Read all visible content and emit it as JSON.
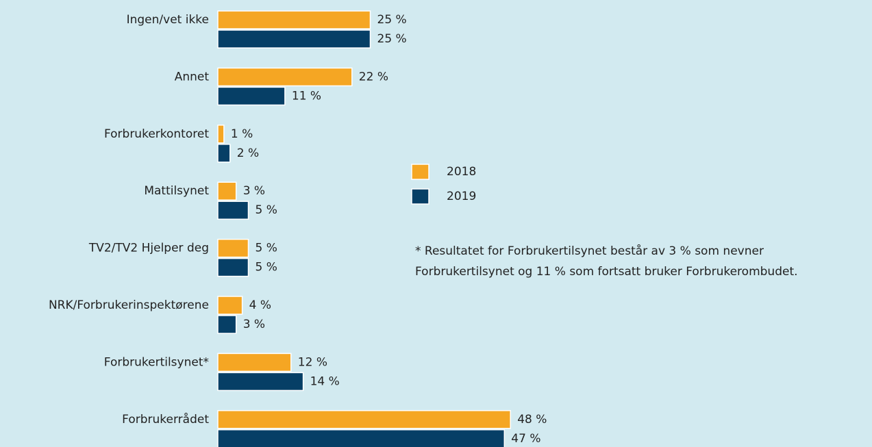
{
  "chart_data": {
    "type": "bar",
    "orientation": "horizontal",
    "categories": [
      "Ingen/vet ikke",
      "Annet",
      "Forbrukerkontoret",
      "Mattilsynet",
      "TV2/TV2 Hjelper deg",
      "NRK/Forbrukerinspektørene",
      "Forbrukertilsynet*",
      "Forbrukerrådet"
    ],
    "series": [
      {
        "name": "2018",
        "color": "#f5a623",
        "values": [
          25,
          22,
          1,
          3,
          5,
          4,
          12,
          48
        ],
        "value_labels": [
          "25 %",
          "22 %",
          "1 %",
          "3 %",
          "5 %",
          "4 %",
          "12 %",
          "48 %"
        ]
      },
      {
        "name": "2019",
        "color": "#063f66",
        "values": [
          25,
          11,
          2,
          5,
          5,
          3,
          14,
          47
        ],
        "value_labels": [
          "25 %",
          "11 %",
          "2 %",
          "5 %",
          "5 %",
          "3 %",
          "14 %",
          "47 %"
        ]
      }
    ],
    "annotation": [
      "* Resultatet for Forbrukertilsynet består av 3 % som nevner",
      "Forbrukertilsynet og 11 % som fortsatt bruker Forbrukerombudet."
    ]
  }
}
